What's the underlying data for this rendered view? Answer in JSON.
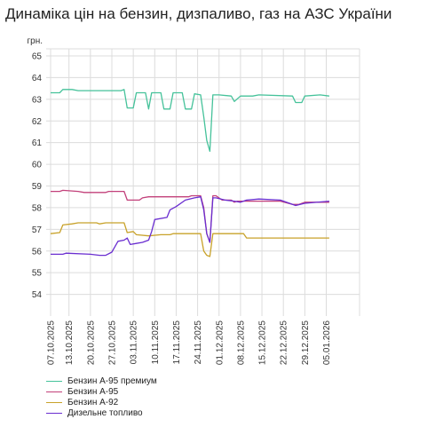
{
  "title": "Динаміка цін на бензин, дизпаливо, газ на АЗС України",
  "chart_data": {
    "type": "line",
    "title": "Динаміка цін на бензин, дизпаливо, газ на АЗС України",
    "ylabel": "грн.",
    "ylim": [
      53,
      65
    ],
    "yticks": [
      54,
      55,
      56,
      57,
      58,
      59,
      60,
      61,
      62,
      63,
      64,
      65
    ],
    "xticks": [
      "07.10.2025",
      "13.10.2025",
      "20.10.2025",
      "27.10.2025",
      "03.11.2025",
      "10.11.2025",
      "17.11.2025",
      "24.11.2025",
      "01.12.2025",
      "08.12.2025",
      "15.12.2025",
      "22.12.2025",
      "29.12.2025",
      "05.01.2026"
    ],
    "grid": true,
    "legend_position": "bottom-left",
    "series": [
      {
        "name": "Бензин А-95 премиум",
        "color": "#45c29a",
        "points": [
          [
            "2025-10-07",
            63.3
          ],
          [
            "2025-10-10",
            63.3
          ],
          [
            "2025-10-11",
            63.45
          ],
          [
            "2025-10-14",
            63.45
          ],
          [
            "2025-10-16",
            63.4
          ],
          [
            "2025-10-30",
            63.4
          ],
          [
            "2025-10-31",
            63.45
          ],
          [
            "2025-11-01",
            62.6
          ],
          [
            "2025-11-03",
            62.6
          ],
          [
            "2025-11-04",
            63.3
          ],
          [
            "2025-11-07",
            63.3
          ],
          [
            "2025-11-08",
            62.55
          ],
          [
            "2025-11-09",
            63.3
          ],
          [
            "2025-11-12",
            63.3
          ],
          [
            "2025-11-13",
            62.55
          ],
          [
            "2025-11-15",
            62.55
          ],
          [
            "2025-11-16",
            63.3
          ],
          [
            "2025-11-19",
            63.3
          ],
          [
            "2025-11-20",
            62.55
          ],
          [
            "2025-11-22",
            62.55
          ],
          [
            "2025-11-23",
            63.25
          ],
          [
            "2025-11-25",
            63.2
          ],
          [
            "2025-11-26",
            62.2
          ],
          [
            "2025-11-27",
            61.1
          ],
          [
            "2025-11-28",
            60.6
          ],
          [
            "2025-11-29",
            63.2
          ],
          [
            "2025-12-01",
            63.2
          ],
          [
            "2025-12-05",
            63.15
          ],
          [
            "2025-12-06",
            62.9
          ],
          [
            "2025-12-08",
            63.15
          ],
          [
            "2025-12-12",
            63.15
          ],
          [
            "2025-12-14",
            63.2
          ],
          [
            "2025-12-25",
            63.15
          ],
          [
            "2025-12-26",
            62.85
          ],
          [
            "2025-12-28",
            62.85
          ],
          [
            "2025-12-29",
            63.15
          ],
          [
            "2026-01-03",
            63.2
          ],
          [
            "2026-01-06",
            63.15
          ]
        ]
      },
      {
        "name": "Бензин А-95",
        "color": "#c2407a",
        "points": [
          [
            "2025-10-07",
            58.75
          ],
          [
            "2025-10-10",
            58.75
          ],
          [
            "2025-10-11",
            58.8
          ],
          [
            "2025-10-16",
            58.75
          ],
          [
            "2025-10-18",
            58.7
          ],
          [
            "2025-10-25",
            58.7
          ],
          [
            "2025-10-26",
            58.75
          ],
          [
            "2025-10-31",
            58.75
          ],
          [
            "2025-11-01",
            58.35
          ],
          [
            "2025-11-05",
            58.35
          ],
          [
            "2025-11-06",
            58.45
          ],
          [
            "2025-11-08",
            58.5
          ],
          [
            "2025-11-21",
            58.5
          ],
          [
            "2025-11-22",
            58.55
          ],
          [
            "2025-11-25",
            58.55
          ],
          [
            "2025-11-26",
            58.0
          ],
          [
            "2025-11-27",
            56.8
          ],
          [
            "2025-11-28",
            56.4
          ],
          [
            "2025-11-29",
            58.55
          ],
          [
            "2025-11-30",
            58.55
          ],
          [
            "2025-12-02",
            58.35
          ],
          [
            "2025-12-05",
            58.35
          ],
          [
            "2025-12-06",
            58.25
          ],
          [
            "2025-12-07",
            58.3
          ],
          [
            "2025-12-21",
            58.3
          ],
          [
            "2025-12-25",
            58.15
          ],
          [
            "2025-12-27",
            58.15
          ],
          [
            "2025-12-29",
            58.25
          ],
          [
            "2026-01-06",
            58.25
          ]
        ]
      },
      {
        "name": "Бензин А-92",
        "color": "#c8a22a",
        "points": [
          [
            "2025-10-07",
            56.8
          ],
          [
            "2025-10-10",
            56.85
          ],
          [
            "2025-10-11",
            57.2
          ],
          [
            "2025-10-14",
            57.25
          ],
          [
            "2025-10-16",
            57.3
          ],
          [
            "2025-10-22",
            57.3
          ],
          [
            "2025-10-23",
            57.25
          ],
          [
            "2025-10-25",
            57.3
          ],
          [
            "2025-10-31",
            57.3
          ],
          [
            "2025-11-01",
            56.85
          ],
          [
            "2025-11-03",
            56.9
          ],
          [
            "2025-11-04",
            56.75
          ],
          [
            "2025-11-08",
            56.7
          ],
          [
            "2025-11-12",
            56.75
          ],
          [
            "2025-11-15",
            56.75
          ],
          [
            "2025-11-16",
            56.8
          ],
          [
            "2025-11-25",
            56.8
          ],
          [
            "2025-11-26",
            56.0
          ],
          [
            "2025-11-27",
            55.8
          ],
          [
            "2025-11-28",
            55.75
          ],
          [
            "2025-11-29",
            56.8
          ],
          [
            "2025-12-09",
            56.8
          ],
          [
            "2025-12-10",
            56.6
          ],
          [
            "2025-12-28",
            56.6
          ],
          [
            "2026-01-06",
            56.6
          ]
        ]
      },
      {
        "name": "Дизельне топливо",
        "color": "#6a2ed0",
        "points": [
          [
            "2025-10-07",
            55.85
          ],
          [
            "2025-10-11",
            55.85
          ],
          [
            "2025-10-12",
            55.9
          ],
          [
            "2025-10-20",
            55.85
          ],
          [
            "2025-10-23",
            55.8
          ],
          [
            "2025-10-25",
            55.8
          ],
          [
            "2025-10-27",
            55.95
          ],
          [
            "2025-10-29",
            56.45
          ],
          [
            "2025-10-31",
            56.5
          ],
          [
            "2025-11-01",
            56.6
          ],
          [
            "2025-11-02",
            56.3
          ],
          [
            "2025-11-04",
            56.35
          ],
          [
            "2025-11-06",
            56.4
          ],
          [
            "2025-11-08",
            56.5
          ],
          [
            "2025-11-09",
            56.9
          ],
          [
            "2025-11-10",
            57.45
          ],
          [
            "2025-11-14",
            57.55
          ],
          [
            "2025-11-15",
            57.9
          ],
          [
            "2025-11-17",
            58.05
          ],
          [
            "2025-11-20",
            58.35
          ],
          [
            "2025-11-23",
            58.45
          ],
          [
            "2025-11-25",
            58.5
          ],
          [
            "2025-11-26",
            57.9
          ],
          [
            "2025-11-27",
            56.8
          ],
          [
            "2025-11-28",
            56.4
          ],
          [
            "2025-11-29",
            58.45
          ],
          [
            "2025-11-30",
            58.45
          ],
          [
            "2025-12-03",
            58.35
          ],
          [
            "2025-12-06",
            58.3
          ],
          [
            "2025-12-08",
            58.25
          ],
          [
            "2025-12-10",
            58.35
          ],
          [
            "2025-12-14",
            58.4
          ],
          [
            "2025-12-21",
            58.35
          ],
          [
            "2025-12-24",
            58.2
          ],
          [
            "2025-12-26",
            58.1
          ],
          [
            "2025-12-29",
            58.2
          ],
          [
            "2026-01-06",
            58.3
          ]
        ]
      }
    ]
  }
}
